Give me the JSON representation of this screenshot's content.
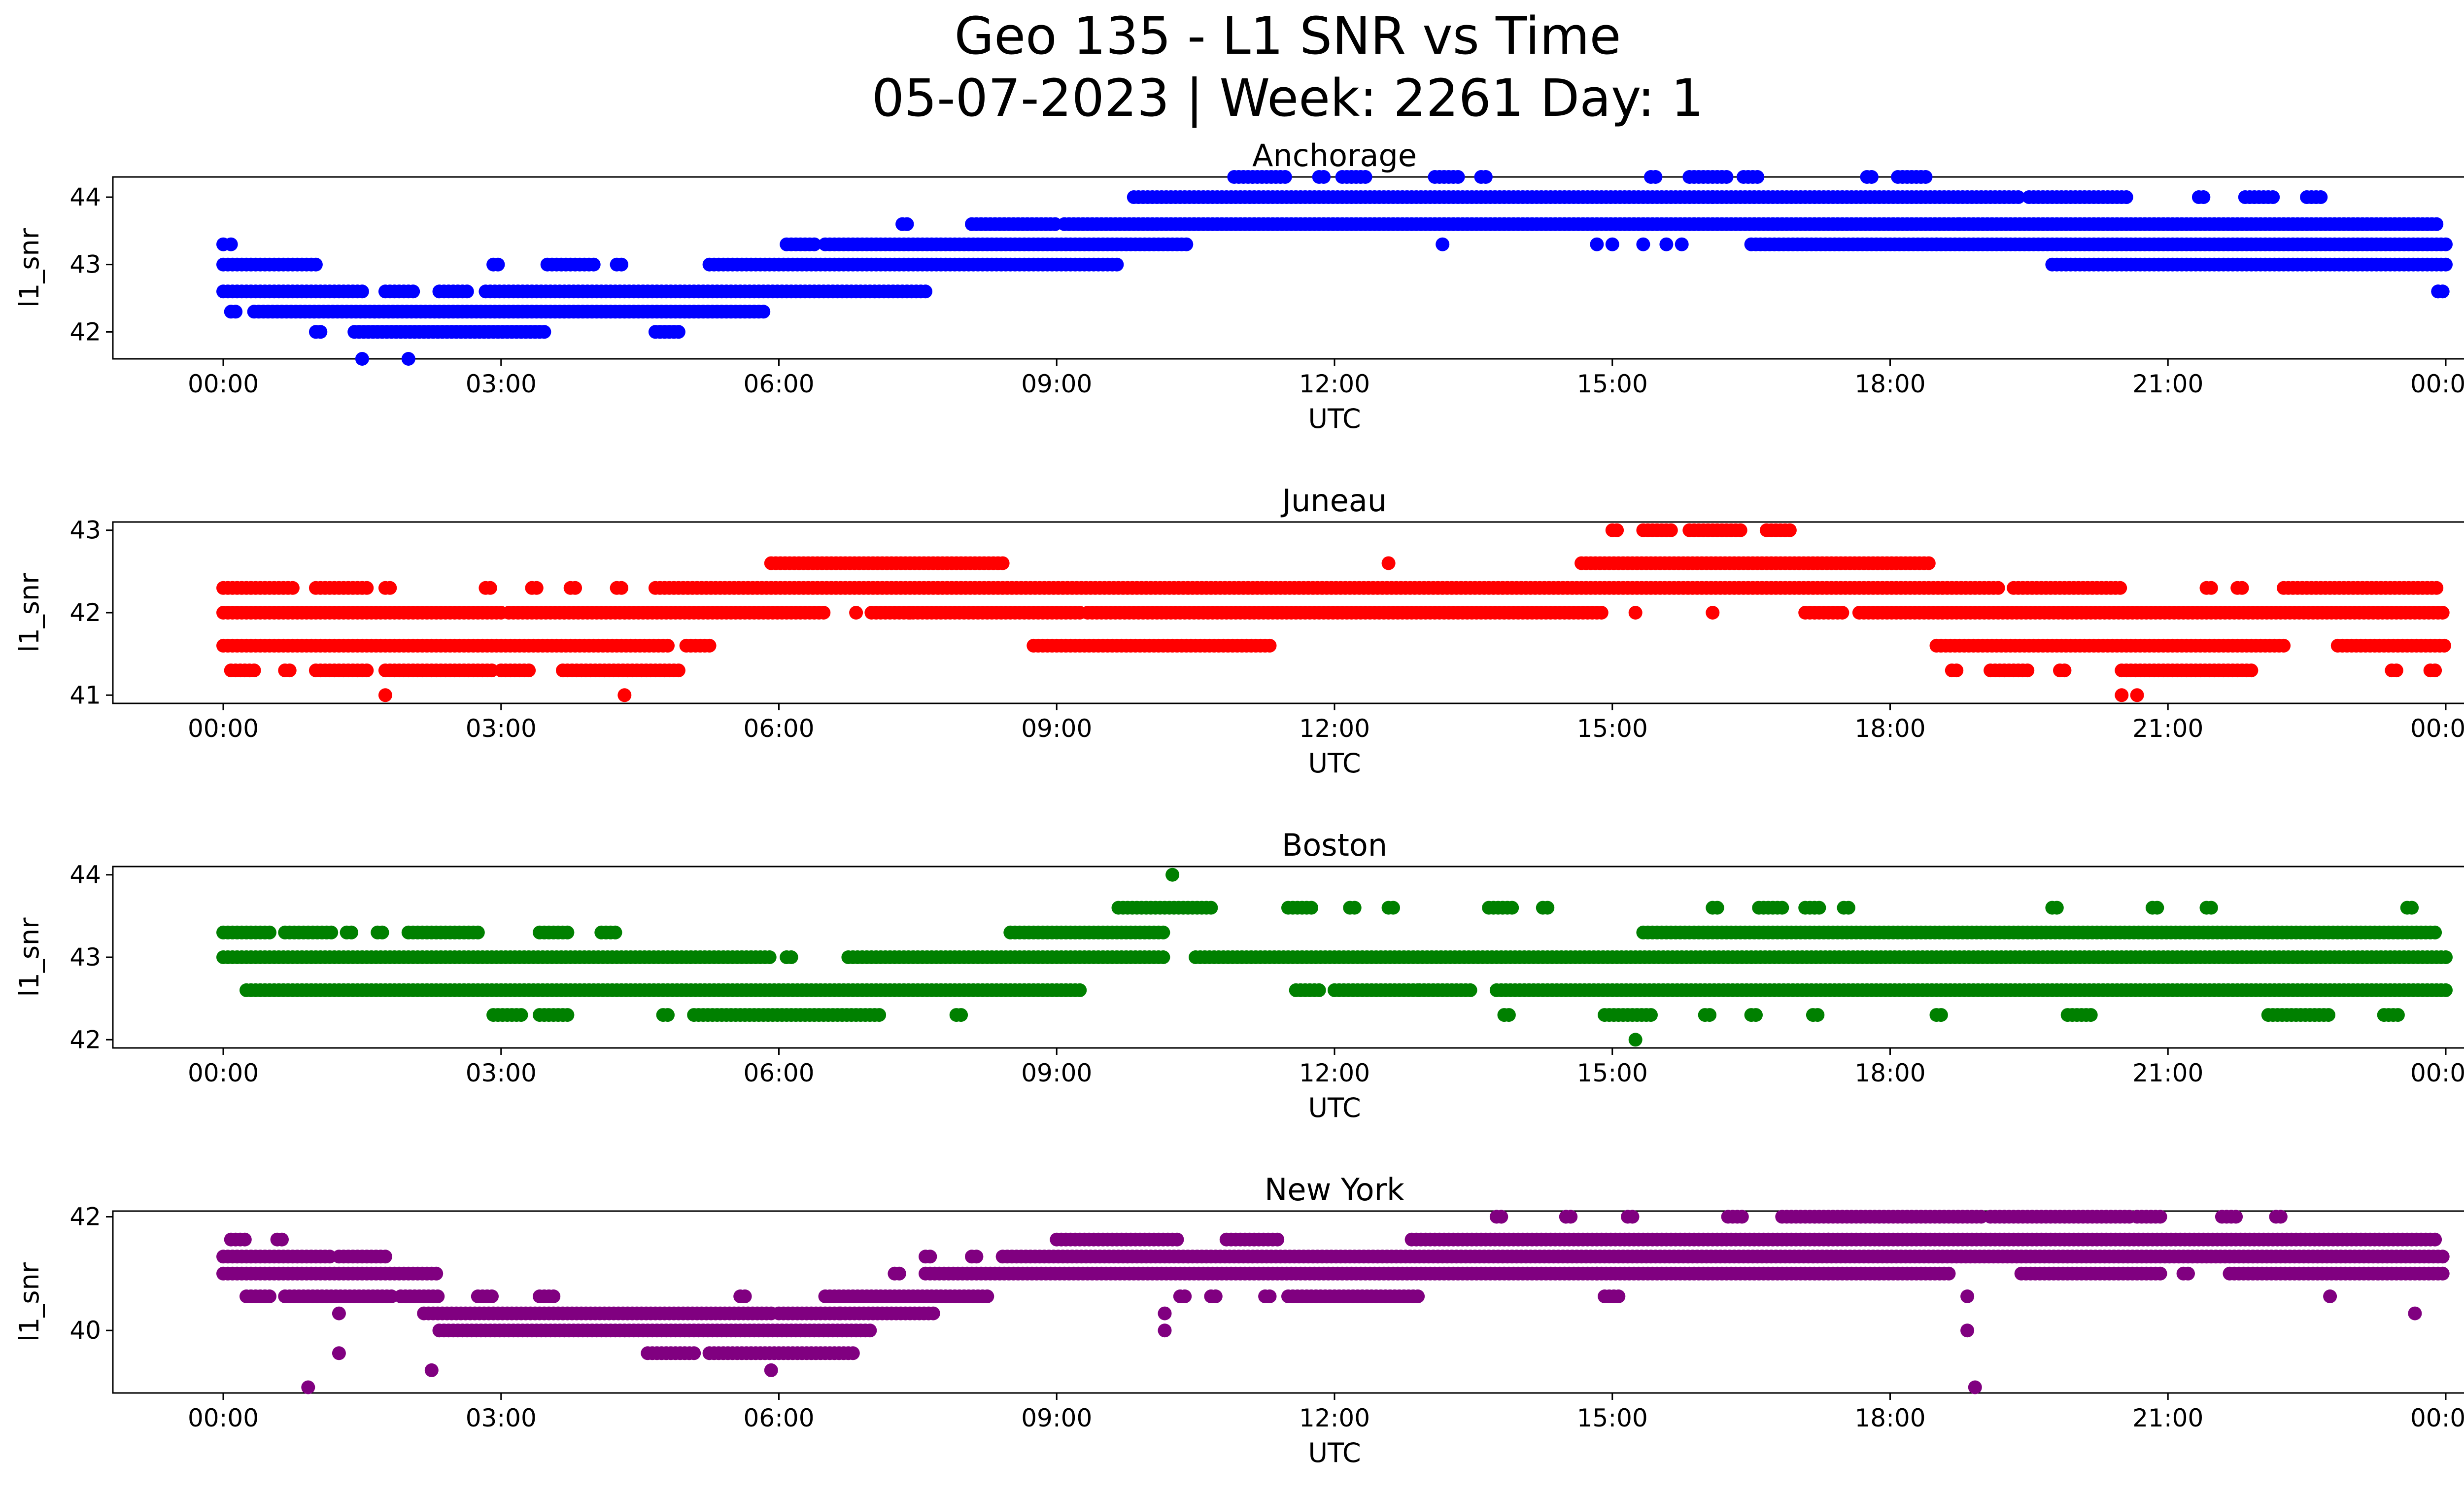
{
  "figure": {
    "title_line1": "Geo 135 - L1 SNR vs Time",
    "title_line2": "05-07-2023 | Week: 2261 Day: 1"
  },
  "chart_data": [
    {
      "type": "scatter",
      "title": "Anchorage",
      "xlabel": "UTC",
      "ylabel": "l1_snr",
      "color": "#0000ff",
      "xlim": [
        "00:00",
        "24:00"
      ],
      "ylim": [
        41.6,
        44.3
      ],
      "yticks": [
        42,
        43,
        44
      ],
      "xticks": [
        "00:00",
        "03:00",
        "06:00",
        "09:00",
        "12:00",
        "15:00",
        "18:00",
        "21:00",
        "00:00"
      ],
      "levels": [
        {
          "y": 43.6,
          "ranges": [
            [
              "07:20",
              "07:25"
            ],
            [
              "08:05",
              "09:00"
            ],
            [
              "09:05",
              "18:45"
            ],
            [
              "18:45",
              "23:55"
            ]
          ]
        },
        {
          "y": 43.3,
          "ranges": [
            [
              "00:00",
              "00:02"
            ],
            [
              "06:05",
              "06:25"
            ],
            [
              "06:30",
              "10:25"
            ],
            [
              "16:30",
              "18:30"
            ],
            [
              "18:30",
              "24:00"
            ]
          ]
        },
        {
          "y": 43.0,
          "ranges": [
            [
              "00:00",
              "01:00"
            ],
            [
              "02:55",
              "03:00"
            ],
            [
              "03:30",
              "04:00"
            ],
            [
              "04:15",
              "04:20"
            ],
            [
              "05:15",
              "09:40"
            ],
            [
              "19:45",
              "24:00"
            ]
          ]
        },
        {
          "y": 42.6,
          "ranges": [
            [
              "00:00",
              "01:30"
            ],
            [
              "01:45",
              "02:05"
            ],
            [
              "02:20",
              "02:40"
            ],
            [
              "02:50",
              "07:35"
            ],
            [
              "23:55",
              "24:00"
            ]
          ]
        },
        {
          "y": 42.3,
          "ranges": [
            [
              "00:05",
              "00:10"
            ],
            [
              "00:20",
              "05:50"
            ]
          ]
        },
        {
          "y": 42.0,
          "ranges": [
            [
              "01:00",
              "01:05"
            ],
            [
              "01:25",
              "03:30"
            ],
            [
              "04:40",
              "04:55"
            ]
          ]
        },
        {
          "y": 44.0,
          "ranges": [
            [
              "09:50",
              "16:05"
            ],
            [
              "16:05",
              "19:25"
            ],
            [
              "19:30",
              "20:35"
            ],
            [
              "21:20",
              "21:25"
            ],
            [
              "21:50",
              "22:10"
            ],
            [
              "22:30",
              "22:40"
            ]
          ]
        },
        {
          "y": 44.3,
          "ranges": [
            [
              "10:55",
              "11:30"
            ],
            [
              "11:50",
              "11:55"
            ],
            [
              "12:05",
              "12:20"
            ],
            [
              "13:05",
              "13:20"
            ],
            [
              "13:35",
              "13:40"
            ],
            [
              "15:25",
              "15:30"
            ],
            [
              "15:50",
              "16:15"
            ],
            [
              "16:25",
              "16:35"
            ],
            [
              "17:45",
              "17:50"
            ],
            [
              "18:05",
              "18:25"
            ]
          ]
        }
      ],
      "points": [
        {
          "x": "00:05",
          "y": 43.3
        },
        {
          "x": "01:30",
          "y": 41.6
        },
        {
          "x": "02:00",
          "y": 41.6
        },
        {
          "x": "13:10",
          "y": 43.3
        },
        {
          "x": "14:50",
          "y": 43.3
        },
        {
          "x": "15:00",
          "y": 43.3
        },
        {
          "x": "15:20",
          "y": 43.3
        },
        {
          "x": "15:35",
          "y": 43.3
        },
        {
          "x": "15:45",
          "y": 43.3
        },
        {
          "x": "23:55",
          "y": 42.6
        }
      ]
    },
    {
      "type": "scatter",
      "title": "Juneau",
      "xlabel": "UTC",
      "ylabel": "l1_snr",
      "color": "#ff0000",
      "xlim": [
        "00:00",
        "24:00"
      ],
      "ylim": [
        40.9,
        43.1
      ],
      "yticks": [
        41,
        42,
        43
      ],
      "xticks": [
        "00:00",
        "03:00",
        "06:00",
        "09:00",
        "12:00",
        "15:00",
        "18:00",
        "21:00",
        "00:00"
      ],
      "levels": [
        {
          "y": 42.3,
          "ranges": [
            [
              "00:00",
              "00:45"
            ],
            [
              "01:00",
              "01:35"
            ],
            [
              "01:45",
              "01:50"
            ],
            [
              "02:50",
              "02:55"
            ],
            [
              "03:20",
              "03:25"
            ],
            [
              "03:45",
              "03:50"
            ],
            [
              "04:15",
              "04:20"
            ],
            [
              "04:40",
              "19:10"
            ],
            [
              "19:20",
              "20:30"
            ],
            [
              "21:25",
              "21:30"
            ],
            [
              "21:45",
              "21:50"
            ],
            [
              "22:15",
              "23:55"
            ]
          ]
        },
        {
          "y": 42.0,
          "ranges": [
            [
              "00:00",
              "03:00"
            ],
            [
              "03:05",
              "06:30"
            ],
            [
              "07:00",
              "09:15"
            ],
            [
              "09:20",
              "14:55"
            ],
            [
              "17:05",
              "17:30"
            ],
            [
              "17:40",
              "24:00"
            ]
          ]
        },
        {
          "y": 41.6,
          "ranges": [
            [
              "00:00",
              "04:50"
            ],
            [
              "05:00",
              "05:15"
            ],
            [
              "08:45",
              "11:20"
            ],
            [
              "18:30",
              "22:15"
            ],
            [
              "22:50",
              "24:00"
            ]
          ]
        },
        {
          "y": 41.3,
          "ranges": [
            [
              "00:05",
              "00:20"
            ],
            [
              "00:40",
              "00:45"
            ],
            [
              "01:00",
              "01:35"
            ],
            [
              "01:45",
              "02:55"
            ],
            [
              "03:00",
              "03:20"
            ],
            [
              "03:40",
              "04:55"
            ],
            [
              "18:40",
              "18:45"
            ],
            [
              "19:05",
              "19:30"
            ],
            [
              "19:50",
              "19:55"
            ],
            [
              "20:30",
              "21:55"
            ],
            [
              "23:25",
              "23:30"
            ],
            [
              "23:50",
              "23:55"
            ]
          ]
        },
        {
          "y": 42.6,
          "ranges": [
            [
              "05:55",
              "08:25"
            ],
            [
              "14:40",
              "18:25"
            ]
          ]
        },
        {
          "y": 43.0,
          "ranges": [
            [
              "15:00",
              "15:05"
            ],
            [
              "15:20",
              "15:40"
            ],
            [
              "15:50",
              "16:25"
            ],
            [
              "16:40",
              "16:55"
            ]
          ]
        }
      ],
      "points": [
        {
          "x": "01:45",
          "y": 41.0
        },
        {
          "x": "04:20",
          "y": 41.0
        },
        {
          "x": "20:30",
          "y": 41.0
        },
        {
          "x": "20:40",
          "y": 41.0
        },
        {
          "x": "12:35",
          "y": 42.6
        },
        {
          "x": "15:15",
          "y": 42.0
        },
        {
          "x": "16:05",
          "y": 42.0
        },
        {
          "x": "07:25",
          "y": 42.0
        },
        {
          "x": "06:50",
          "y": 42.0
        }
      ]
    },
    {
      "type": "scatter",
      "title": "Boston",
      "xlabel": "UTC",
      "ylabel": "l1_snr",
      "color": "#008000",
      "xlim": [
        "00:00",
        "24:00"
      ],
      "ylim": [
        41.9,
        44.1
      ],
      "yticks": [
        42,
        43,
        44
      ],
      "xticks": [
        "00:00",
        "03:00",
        "06:00",
        "09:00",
        "12:00",
        "15:00",
        "18:00",
        "21:00",
        "00:00"
      ],
      "levels": [
        {
          "y": 43.3,
          "ranges": [
            [
              "00:00",
              "00:30"
            ],
            [
              "00:40",
              "01:10"
            ],
            [
              "01:20",
              "01:25"
            ],
            [
              "01:40",
              "01:45"
            ],
            [
              "02:00",
              "02:45"
            ],
            [
              "03:25",
              "03:45"
            ],
            [
              "04:05",
              "04:15"
            ],
            [
              "08:30",
              "10:10"
            ],
            [
              "15:20",
              "23:55"
            ]
          ]
        },
        {
          "y": 43.0,
          "ranges": [
            [
              "00:00",
              "05:55"
            ],
            [
              "06:05",
              "06:10"
            ],
            [
              "06:45",
              "10:10"
            ],
            [
              "10:30",
              "24:00"
            ]
          ]
        },
        {
          "y": 42.6,
          "ranges": [
            [
              "00:15",
              "09:15"
            ],
            [
              "11:35",
              "11:50"
            ],
            [
              "12:00",
              "12:55"
            ],
            [
              "12:55",
              "13:30"
            ],
            [
              "13:45",
              "24:00"
            ]
          ]
        },
        {
          "y": 42.3,
          "ranges": [
            [
              "02:55",
              "03:15"
            ],
            [
              "03:25",
              "03:45"
            ],
            [
              "04:45",
              "04:50"
            ],
            [
              "05:05",
              "07:05"
            ],
            [
              "07:55",
              "08:00"
            ],
            [
              "13:50",
              "13:55"
            ],
            [
              "14:55",
              "15:25"
            ],
            [
              "16:00",
              "16:05"
            ],
            [
              "16:30",
              "16:35"
            ],
            [
              "17:10",
              "17:15"
            ],
            [
              "18:30",
              "18:35"
            ],
            [
              "19:55",
              "20:10"
            ],
            [
              "22:05",
              "22:45"
            ],
            [
              "23:20",
              "23:30"
            ]
          ]
        },
        {
          "y": 43.6,
          "ranges": [
            [
              "09:40",
              "10:40"
            ],
            [
              "11:30",
              "11:45"
            ],
            [
              "12:10",
              "12:15"
            ],
            [
              "12:35",
              "12:40"
            ],
            [
              "13:40",
              "13:55"
            ],
            [
              "14:15",
              "14:20"
            ],
            [
              "16:05",
              "16:10"
            ],
            [
              "16:35",
              "16:50"
            ],
            [
              "17:05",
              "17:15"
            ],
            [
              "17:30",
              "17:35"
            ],
            [
              "19:45",
              "19:50"
            ],
            [
              "20:50",
              "20:55"
            ],
            [
              "21:25",
              "21:30"
            ],
            [
              "23:35",
              "23:40"
            ]
          ]
        }
      ],
      "points": [
        {
          "x": "10:15",
          "y": 44.0
        },
        {
          "x": "15:15",
          "y": 42.0
        }
      ]
    },
    {
      "type": "scatter",
      "title": "New York",
      "xlabel": "UTC",
      "ylabel": "l1_snr",
      "color": "#800080",
      "xlim": [
        "00:00",
        "24:00"
      ],
      "ylim": [
        38.9,
        42.1
      ],
      "yticks": [
        40,
        42
      ],
      "xticks": [
        "00:00",
        "03:00",
        "06:00",
        "09:00",
        "12:00",
        "15:00",
        "18:00",
        "21:00",
        "00:00"
      ],
      "levels": [
        {
          "y": 41.3,
          "ranges": [
            [
              "00:00",
              "01:10"
            ],
            [
              "01:15",
              "01:45"
            ],
            [
              "07:35",
              "07:40"
            ],
            [
              "08:05",
              "08:10"
            ],
            [
              "08:25",
              "24:00"
            ]
          ]
        },
        {
          "y": 41.0,
          "ranges": [
            [
              "00:00",
              "02:20"
            ],
            [
              "07:15",
              "07:20"
            ],
            [
              "07:35",
              "14:50"
            ],
            [
              "14:50",
              "18:40"
            ],
            [
              "19:25",
              "20:55"
            ],
            [
              "21:10",
              "21:15"
            ],
            [
              "21:40",
              "24:00"
            ]
          ]
        },
        {
          "y": 40.6,
          "ranges": [
            [
              "00:15",
              "00:30"
            ],
            [
              "00:40",
              "01:50"
            ],
            [
              "01:55",
              "02:20"
            ],
            [
              "02:45",
              "02:55"
            ],
            [
              "03:25",
              "03:35"
            ],
            [
              "05:35",
              "05:40"
            ],
            [
              "06:30",
              "08:15"
            ],
            [
              "10:20",
              "10:25"
            ],
            [
              "10:40",
              "10:45"
            ],
            [
              "11:15",
              "11:20"
            ],
            [
              "11:30",
              "12:55"
            ],
            [
              "14:55",
              "15:05"
            ]
          ]
        },
        {
          "y": 40.3,
          "ranges": [
            [
              "02:10",
              "05:55"
            ],
            [
              "06:00",
              "06:40"
            ],
            [
              "06:40",
              "07:40"
            ]
          ]
        },
        {
          "y": 40.0,
          "ranges": [
            [
              "02:20",
              "07:00"
            ]
          ]
        },
        {
          "y": 39.6,
          "ranges": [
            [
              "04:35",
              "05:05"
            ],
            [
              "05:15",
              "06:50"
            ]
          ]
        },
        {
          "y": 41.6,
          "ranges": [
            [
              "00:05",
              "00:15"
            ],
            [
              "00:35",
              "00:40"
            ],
            [
              "09:00",
              "10:20"
            ],
            [
              "10:50",
              "11:25"
            ],
            [
              "12:50",
              "17:20"
            ],
            [
              "17:20",
              "23:55"
            ]
          ]
        },
        {
          "y": 42.0,
          "ranges": [
            [
              "13:45",
              "13:50"
            ],
            [
              "14:30",
              "14:35"
            ],
            [
              "15:10",
              "15:15"
            ],
            [
              "16:15",
              "16:25"
            ],
            [
              "16:50",
              "19:00"
            ],
            [
              "19:05",
              "20:35"
            ],
            [
              "20:40",
              "20:55"
            ],
            [
              "21:35",
              "21:45"
            ],
            [
              "22:10",
              "22:15"
            ]
          ]
        }
      ],
      "points": [
        {
          "x": "00:55",
          "y": 39.0
        },
        {
          "x": "01:15",
          "y": 40.3
        },
        {
          "x": "01:15",
          "y": 39.6
        },
        {
          "x": "02:15",
          "y": 39.3
        },
        {
          "x": "05:55",
          "y": 39.3
        },
        {
          "x": "10:10",
          "y": 40.3
        },
        {
          "x": "10:10",
          "y": 40.0
        },
        {
          "x": "18:50",
          "y": 40.6
        },
        {
          "x": "18:50",
          "y": 40.0
        },
        {
          "x": "18:55",
          "y": 39.0
        },
        {
          "x": "22:45",
          "y": 40.6
        },
        {
          "x": "23:40",
          "y": 40.3
        }
      ]
    }
  ]
}
